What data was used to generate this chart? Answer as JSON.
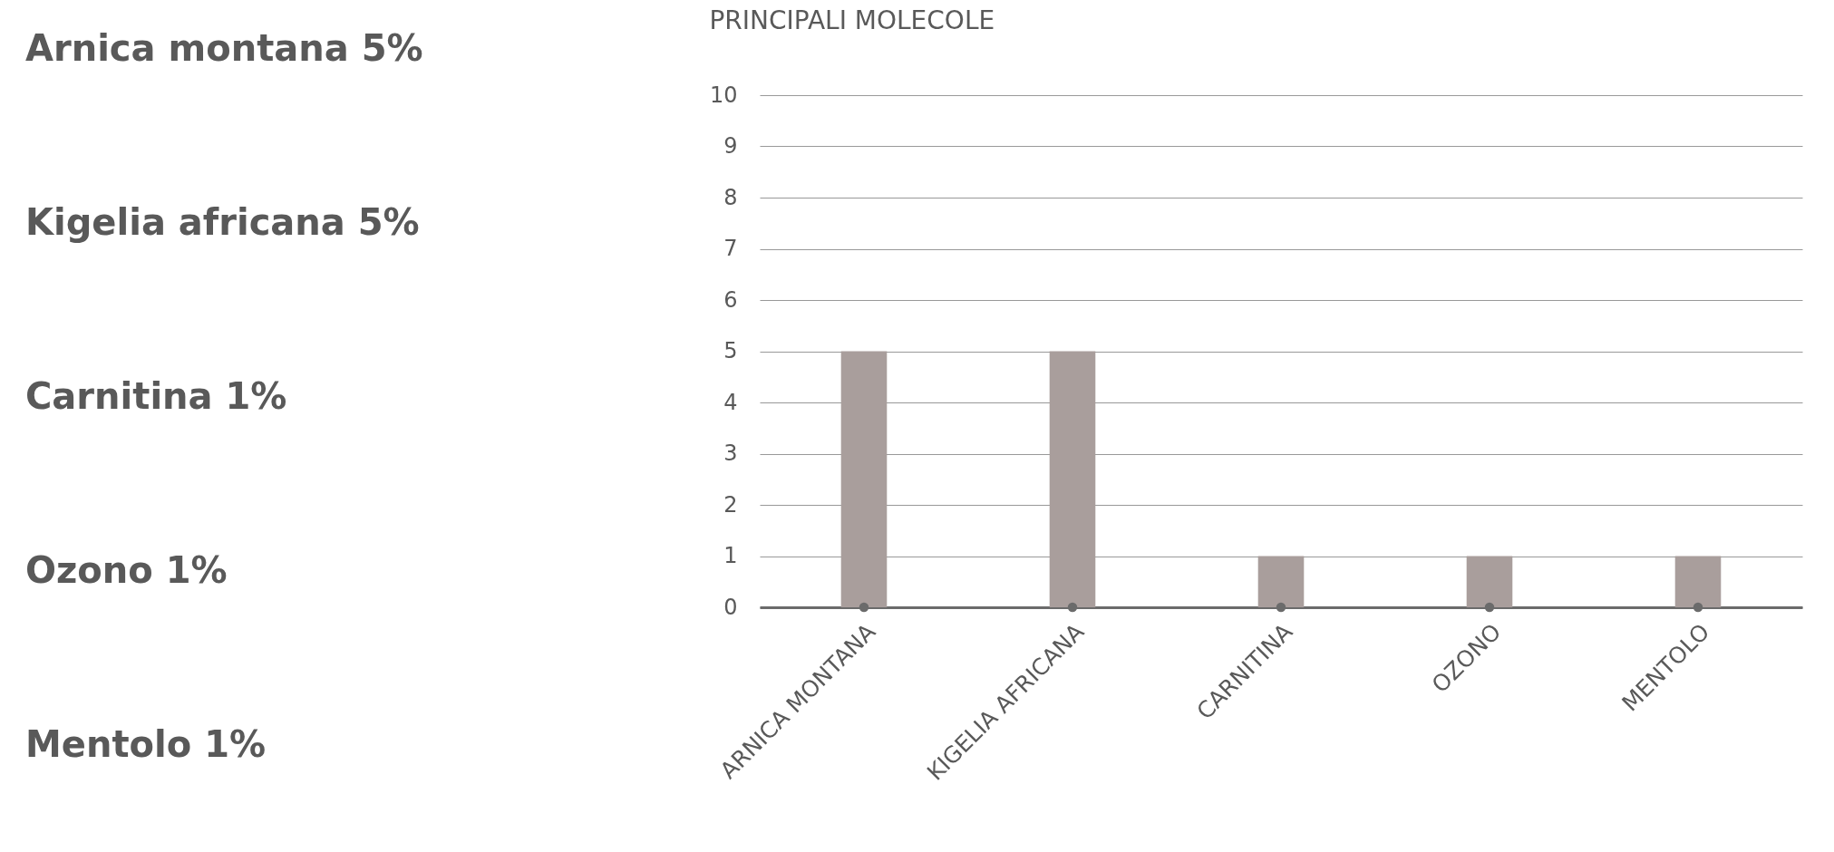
{
  "chart_data": {
    "type": "bar",
    "title": "PRINCIPALI MOLECOLE",
    "categories": [
      "ARNICA MONTANA",
      "KIGELIA AFRICANA",
      "CARNITINA",
      "OZONO",
      "MENTOLO"
    ],
    "series": [
      {
        "type": "bar",
        "color": "#a99e9c",
        "values": [
          5,
          5,
          1,
          1,
          1
        ]
      },
      {
        "type": "scatter",
        "color": "#6b6b6b",
        "marker": "circle",
        "values": [
          0,
          0,
          0,
          0,
          0
        ]
      }
    ],
    "ylim": [
      0,
      10
    ],
    "yticks": [
      0,
      1,
      2,
      3,
      4,
      5,
      6,
      7,
      8,
      9,
      10
    ],
    "grid": "y",
    "annotations": [
      "Arnica montana 5%",
      "Kigelia africana 5%",
      "Carnitina 1%",
      "Ozono 1%",
      "Mentolo 1%"
    ]
  }
}
